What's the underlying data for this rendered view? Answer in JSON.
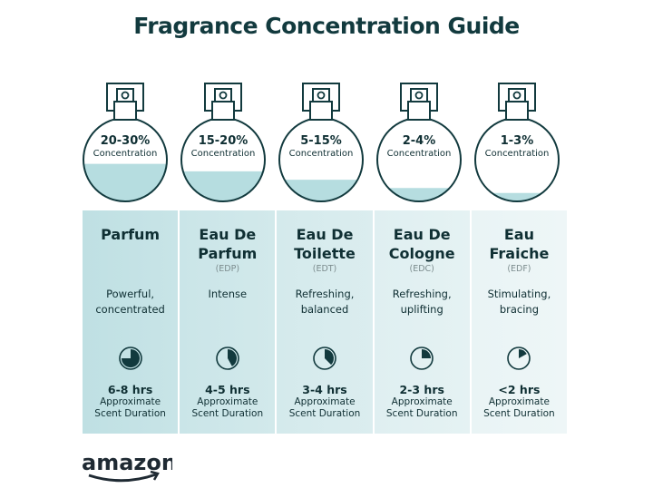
{
  "title": "Fragrance Concentration Guide",
  "colors": {
    "dark": "#123a3e",
    "liquid": "#b6dde0",
    "column_start": "#bfe0e3",
    "column_end": "#eef6f7"
  },
  "concentration_label": "Concentration",
  "duration_label_line1": "Approximate",
  "duration_label_line2": "Scent Duration",
  "types": [
    {
      "percent": "20-30%",
      "fill_level": 0.45,
      "name_line1": "Parfum",
      "name_line2": "",
      "abbr": "",
      "desc_line1": "Powerful,",
      "desc_line2": "concentrated",
      "hours": "6-8 hrs",
      "clock_fraction": 0.75
    },
    {
      "percent": "15-20%",
      "fill_level": 0.36,
      "name_line1": "Eau De",
      "name_line2": "Parfum",
      "abbr": "(EDP)",
      "desc_line1": "Intense",
      "desc_line2": "",
      "hours": "4-5 hrs",
      "clock_fraction": 0.42
    },
    {
      "percent": "5-15%",
      "fill_level": 0.26,
      "name_line1": "Eau De",
      "name_line2": "Toilette",
      "abbr": "(EDT)",
      "desc_line1": "Refreshing,",
      "desc_line2": "balanced",
      "hours": "3-4 hrs",
      "clock_fraction": 0.375
    },
    {
      "percent": "2-4%",
      "fill_level": 0.16,
      "name_line1": "Eau De",
      "name_line2": "Cologne",
      "abbr": "(EDC)",
      "desc_line1": "Refreshing,",
      "desc_line2": "uplifting",
      "hours": "2-3 hrs",
      "clock_fraction": 0.25
    },
    {
      "percent": "1-3%",
      "fill_level": 0.1,
      "name_line1": "Eau",
      "name_line2": "Fraiche",
      "abbr": "(EDF)",
      "desc_line1": "Stimulating,",
      "desc_line2": "bracing",
      "hours": "<2 hrs",
      "clock_fraction": 0.17
    }
  ],
  "logo": "amazon"
}
